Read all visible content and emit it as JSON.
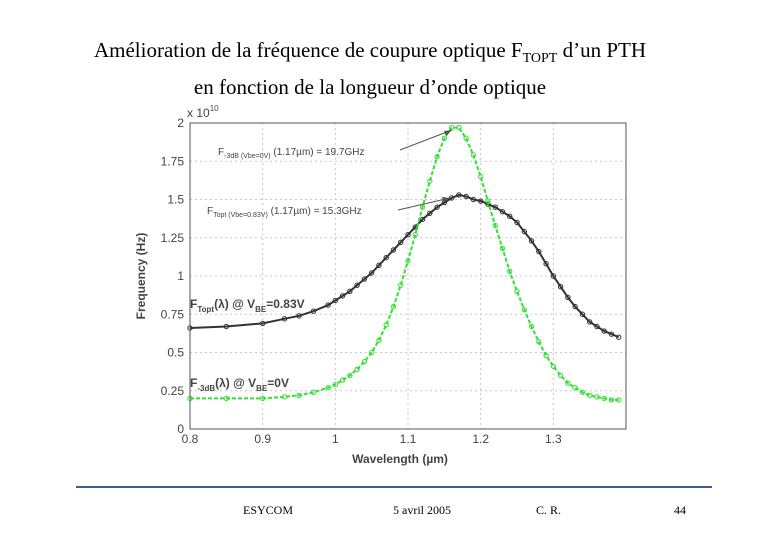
{
  "slide": {
    "title_main": "Amélioration de la fréquence de coupure optique F",
    "title_sub": "TOPT",
    "title_tail": " d’un PTH",
    "title_line2": "en fonction de la longueur d’onde optique"
  },
  "footer": {
    "org": "ESYCOM",
    "date": "5 avril 2005",
    "author": "C. R.",
    "page": "44"
  },
  "chart_data": {
    "type": "line",
    "xlabel": "Wavelength (µm)",
    "ylabel": "Frequency (Hz)",
    "y_multiplier": "x 10",
    "y_multiplier_exp": "10",
    "xlim": [
      0.8,
      1.4
    ],
    "ylim": [
      0,
      2
    ],
    "x_ticks": [
      "0.8",
      "0.9",
      "1",
      "1.1",
      "1.2",
      "1.3"
    ],
    "y_ticks": [
      "0",
      "0.25",
      "0.5",
      "0.75",
      "1",
      "1.25",
      "1.5",
      "1.75",
      "2"
    ],
    "grid": true,
    "series": [
      {
        "name": "FTopt(λ) @ VBE=0.83V",
        "color": "#333333",
        "x": [
          0.8,
          0.85,
          0.9,
          0.93,
          0.95,
          0.97,
          0.99,
          1.0,
          1.01,
          1.02,
          1.03,
          1.04,
          1.05,
          1.06,
          1.07,
          1.08,
          1.09,
          1.1,
          1.11,
          1.12,
          1.13,
          1.14,
          1.15,
          1.16,
          1.17,
          1.18,
          1.19,
          1.2,
          1.21,
          1.22,
          1.23,
          1.24,
          1.25,
          1.26,
          1.27,
          1.28,
          1.29,
          1.3,
          1.31,
          1.32,
          1.33,
          1.34,
          1.35,
          1.36,
          1.37,
          1.38,
          1.39
        ],
        "y": [
          0.66,
          0.67,
          0.69,
          0.72,
          0.74,
          0.77,
          0.81,
          0.84,
          0.87,
          0.9,
          0.94,
          0.98,
          1.02,
          1.07,
          1.12,
          1.17,
          1.22,
          1.27,
          1.32,
          1.37,
          1.41,
          1.45,
          1.48,
          1.51,
          1.53,
          1.52,
          1.5,
          1.49,
          1.47,
          1.45,
          1.42,
          1.39,
          1.35,
          1.29,
          1.23,
          1.16,
          1.08,
          1.0,
          0.93,
          0.86,
          0.8,
          0.75,
          0.7,
          0.67,
          0.64,
          0.62,
          0.6
        ]
      },
      {
        "name": "F-3dB(λ) @ VBE=0V",
        "color": "#33e033",
        "x": [
          0.8,
          0.85,
          0.9,
          0.93,
          0.95,
          0.97,
          0.99,
          1.0,
          1.01,
          1.02,
          1.03,
          1.04,
          1.05,
          1.06,
          1.07,
          1.08,
          1.09,
          1.1,
          1.11,
          1.12,
          1.13,
          1.14,
          1.15,
          1.16,
          1.17,
          1.18,
          1.19,
          1.2,
          1.21,
          1.22,
          1.23,
          1.24,
          1.25,
          1.26,
          1.27,
          1.28,
          1.29,
          1.3,
          1.31,
          1.32,
          1.33,
          1.34,
          1.35,
          1.36,
          1.37,
          1.38,
          1.39
        ],
        "y": [
          0.2,
          0.2,
          0.2,
          0.21,
          0.22,
          0.24,
          0.27,
          0.29,
          0.32,
          0.35,
          0.39,
          0.44,
          0.5,
          0.58,
          0.68,
          0.8,
          0.94,
          1.1,
          1.27,
          1.45,
          1.62,
          1.78,
          1.9,
          1.97,
          1.97,
          1.9,
          1.79,
          1.65,
          1.49,
          1.33,
          1.18,
          1.03,
          0.9,
          0.78,
          0.67,
          0.57,
          0.48,
          0.41,
          0.35,
          0.3,
          0.27,
          0.24,
          0.22,
          0.21,
          0.2,
          0.19,
          0.19
        ]
      }
    ],
    "annotations": [
      {
        "label": "F-3dB (Vbe=0V)(1.17µm) = 19.7GHz"
      },
      {
        "label": "FTopt (Vbe=0.83V)(1.17µm) = 15.3GHz"
      }
    ]
  }
}
